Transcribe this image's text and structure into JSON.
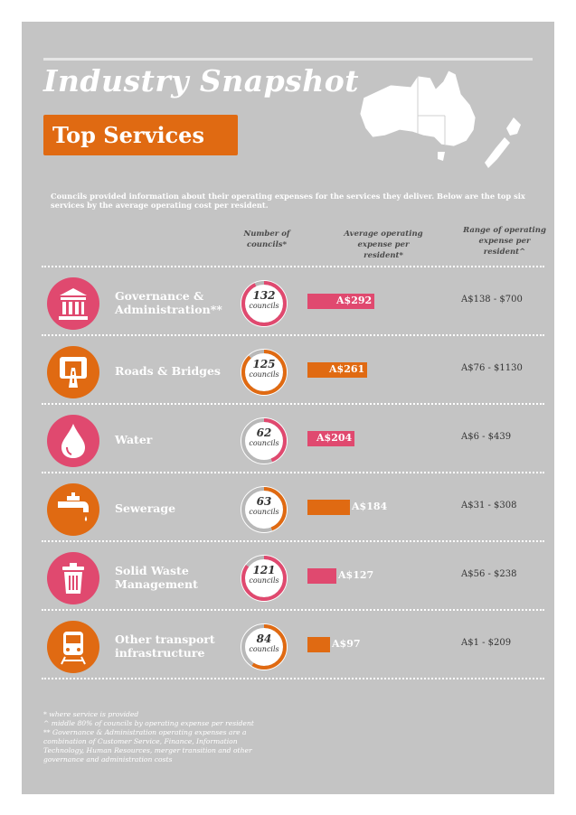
{
  "header": {
    "title": "Industry Snapshot",
    "badge": "Top Services"
  },
  "intro": "Councils provided information about their operating expenses for the services they deliver. Below are the top six services by the average operating cost per resident.",
  "columns": {
    "councils": "Number of councils*",
    "average": "Average operating expense per resident*",
    "range": "Range of operating expense per resident^"
  },
  "total_councils_scale_note": "",
  "colors": {
    "pink": "#e0496f",
    "orange": "#e06a12",
    "card": "#c4c4c4"
  },
  "services": [
    {
      "name": "Governance & Administration**",
      "icon": "institution-icon",
      "color": "pink",
      "councils": "132",
      "councils_label": "councils",
      "avg_label": "A$292",
      "range": "A$138 - $700"
    },
    {
      "name": "Roads & Bridges",
      "icon": "road-icon",
      "color": "orange",
      "councils": "125",
      "councils_label": "councils",
      "avg_label": "A$261",
      "range": "A$76 - $1130"
    },
    {
      "name": "Water",
      "icon": "water-drop-icon",
      "color": "pink",
      "councils": "62",
      "councils_label": "councils",
      "avg_label": "A$204",
      "range": "A$6 - $439"
    },
    {
      "name": "Sewerage",
      "icon": "tap-icon",
      "color": "orange",
      "councils": "63",
      "councils_label": "councils",
      "avg_label": "A$184",
      "range": "A$31 - $308"
    },
    {
      "name": "Solid Waste Management",
      "icon": "bin-icon",
      "color": "pink",
      "councils": "121",
      "councils_label": "councils",
      "avg_label": "A$127",
      "range": "A$56 - $238"
    },
    {
      "name": "Other transport infrastructure",
      "icon": "train-icon",
      "color": "orange",
      "councils": "84",
      "councils_label": "councils",
      "avg_label": "A$97",
      "range": "A$1 - $209"
    }
  ],
  "chart_data": {
    "type": "bar",
    "categories": [
      "Governance & Administration**",
      "Roads & Bridges",
      "Water",
      "Sewerage",
      "Solid Waste Management",
      "Other transport infrastructure"
    ],
    "series": [
      {
        "name": "Average operating expense per resident*",
        "values": [
          292,
          261,
          204,
          184,
          127,
          97
        ]
      },
      {
        "name": "Number of councils*",
        "values": [
          132,
          125,
          62,
          63,
          121,
          84
        ]
      }
    ],
    "donut_fraction": [
      0.93,
      0.88,
      0.44,
      0.44,
      0.85,
      0.59
    ]
  },
  "footnotes": "* where service is provided\n^ middle 80% of councils by operating expense per resident\n** Governance & Administration operating expenses are a combination of Customer Service, Finance, Information Technology, Human Resources, merger transition and other governance and administration costs"
}
